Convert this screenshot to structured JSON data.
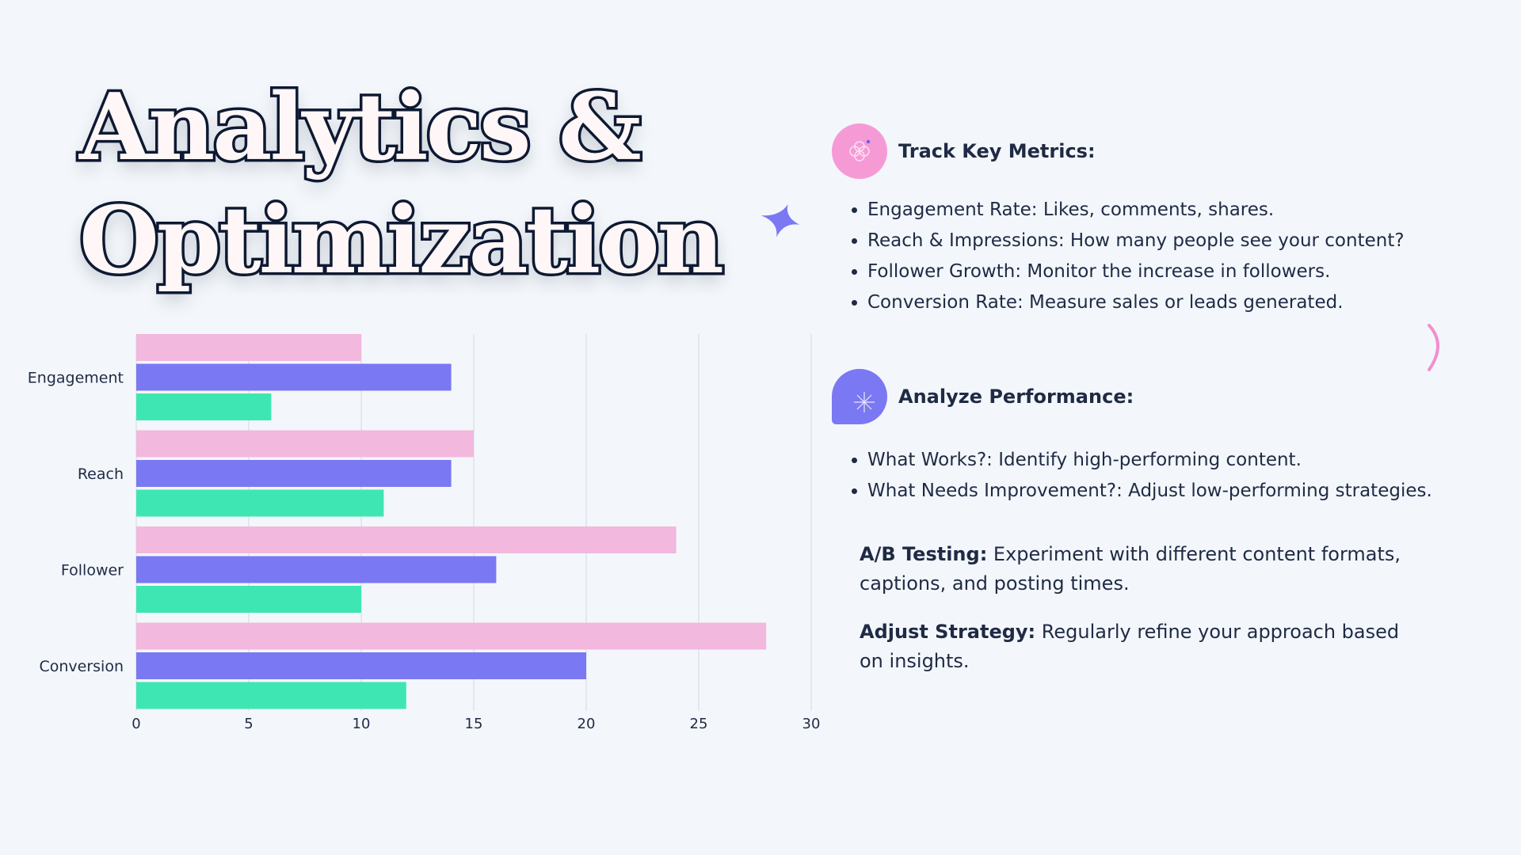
{
  "title": {
    "line1": "Analytics &",
    "line2": "Optimization"
  },
  "colors": {
    "background": "#f3f7fb",
    "pink": "#f2b8de",
    "blue": "#7b78f3",
    "green": "#3ee6b4",
    "text": "#1f2a44"
  },
  "sections": {
    "track": {
      "heading": "Track Key Metrics:",
      "icon": "flower-icon",
      "items": [
        "Engagement Rate: Likes, comments, shares.",
        "Reach & Impressions: How many people see your content?",
        "Follower Growth: Monitor the increase in followers.",
        "Conversion Rate: Measure sales or leads generated."
      ]
    },
    "analyze": {
      "heading": "Analyze Performance:",
      "icon": "starburst-icon",
      "items": [
        "What Works?: Identify high-performing content.",
        "What Needs Improvement?: Adjust low-performing strategies."
      ]
    },
    "ab_testing": {
      "label": "A/B Testing:",
      "text": " Experiment with different content formats, captions, and posting times."
    },
    "adjust": {
      "label": "Adjust Strategy:",
      "text": " Regularly refine your approach based on insights."
    }
  },
  "chart_data": {
    "type": "bar",
    "orientation": "horizontal",
    "categories": [
      "Engagement",
      "Reach",
      "Follower",
      "Conversion"
    ],
    "series": [
      {
        "values": [
          10,
          15,
          24,
          28
        ],
        "color": "#f2b8de"
      },
      {
        "values": [
          14,
          14,
          16,
          20
        ],
        "color": "#7b78f3"
      },
      {
        "values": [
          6,
          11,
          10,
          12
        ],
        "color": "#3ee6b4"
      }
    ],
    "xlim": [
      0,
      30
    ],
    "xticks": [
      0,
      5,
      10,
      15,
      20,
      25,
      30
    ],
    "grid": true,
    "title": "",
    "xlabel": "",
    "ylabel": ""
  }
}
